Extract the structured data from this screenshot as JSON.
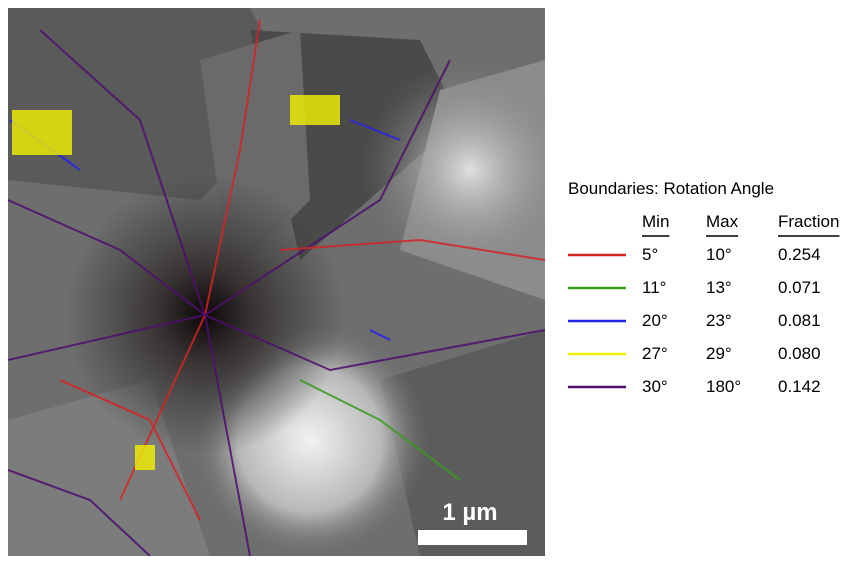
{
  "scale_bar": {
    "label": "1 µm"
  },
  "legend": {
    "title": "Boundaries: Rotation Angle",
    "headers": [
      "Min",
      "Max",
      "Fraction"
    ],
    "rows": [
      {
        "color": "#d42424",
        "min": "5°",
        "max": "10°",
        "fraction": "0.254"
      },
      {
        "color": "#3c9a1e",
        "min": "11°",
        "max": "13°",
        "fraction": "0.071"
      },
      {
        "color": "#2424e6",
        "min": "20°",
        "max": "23°",
        "fraction": "0.081"
      },
      {
        "color": "#f2f200",
        "min": "27°",
        "max": "29°",
        "fraction": "0.080"
      },
      {
        "color": "#4e0f6e",
        "min": "30°",
        "max": "180°",
        "fraction": "0.142"
      }
    ]
  }
}
